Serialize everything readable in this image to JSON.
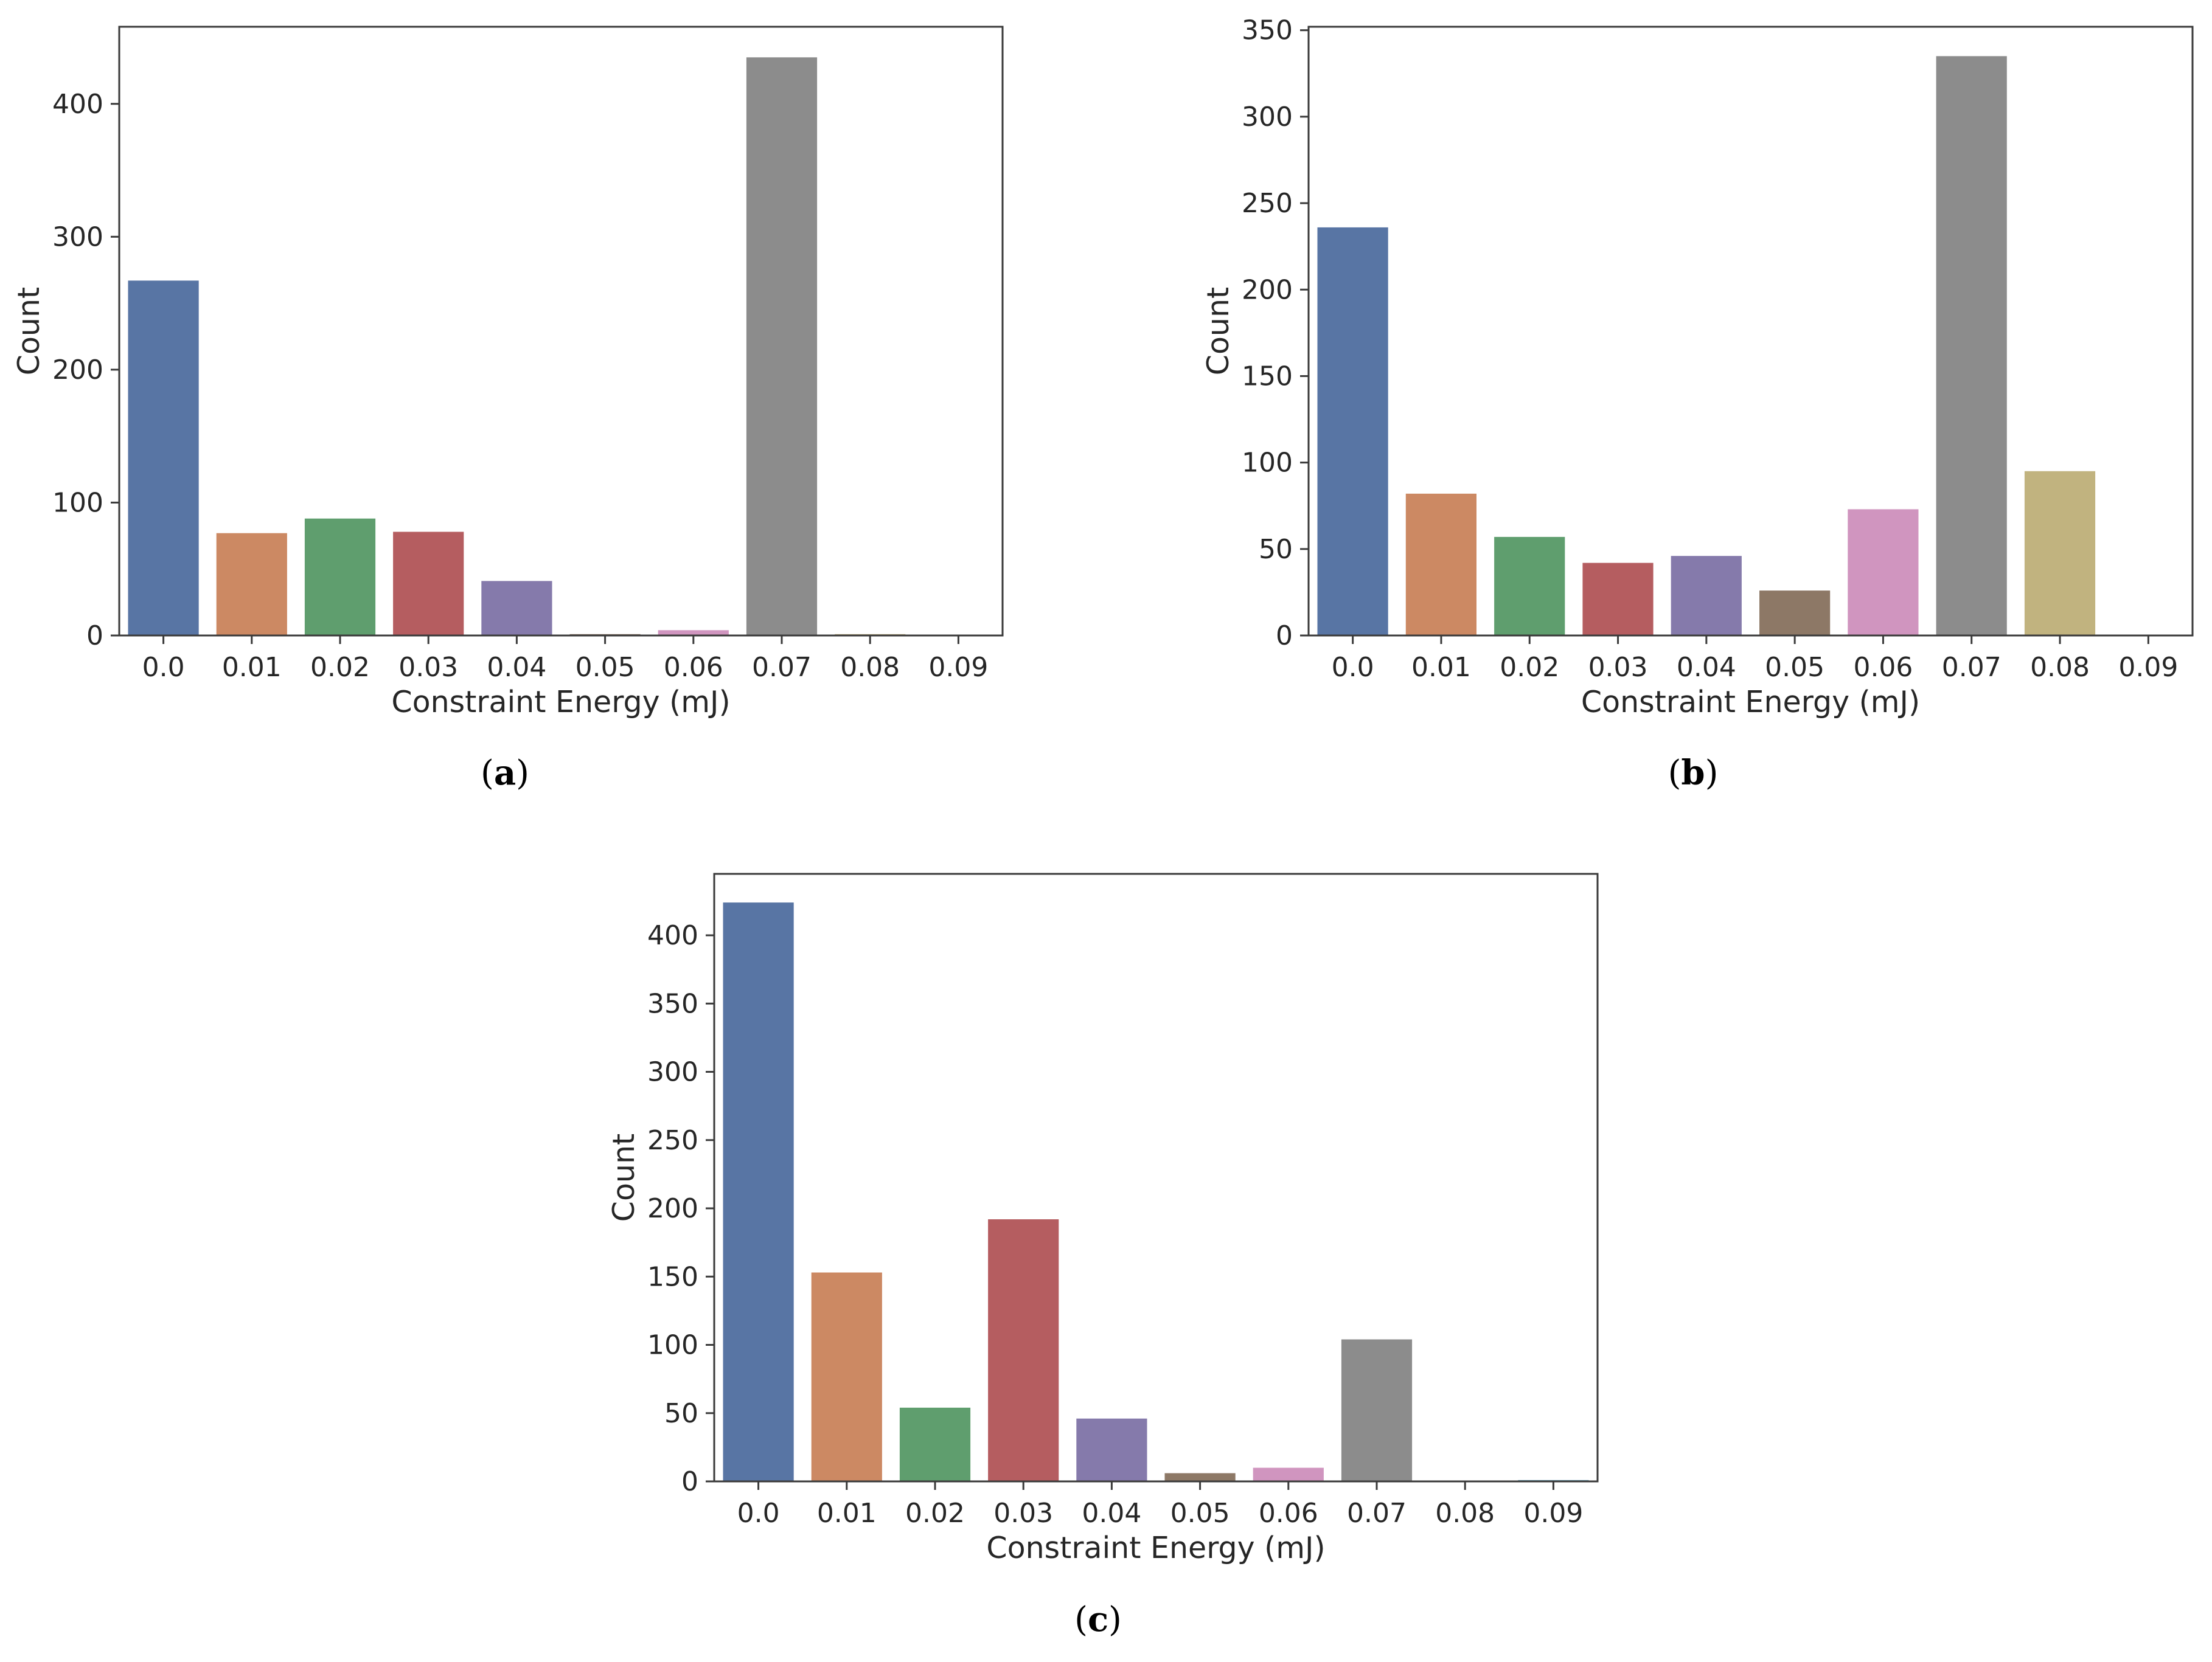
{
  "chart_data": [
    {
      "id": "a",
      "type": "bar",
      "caption_letter": "a",
      "xlabel": "Constraint Energy (mJ)",
      "ylabel": "Count",
      "categories": [
        "0.0",
        "0.01",
        "0.02",
        "0.03",
        "0.04",
        "0.05",
        "0.06",
        "0.07",
        "0.08",
        "0.09"
      ],
      "values": [
        267,
        77,
        88,
        78,
        41,
        1,
        4,
        435,
        1,
        0
      ],
      "colors": [
        "#5875a4",
        "#cc8963",
        "#5f9e6e",
        "#b55d60",
        "#857aab",
        "#8d7866",
        "#d095bf",
        "#8c8c8c",
        "#c1b37f",
        "#6aa4bb"
      ],
      "ylim": [
        0,
        458
      ],
      "yticks": [
        0,
        100,
        200,
        300,
        400
      ]
    },
    {
      "id": "b",
      "type": "bar",
      "caption_letter": "b",
      "xlabel": "Constraint Energy (mJ)",
      "ylabel": "Count",
      "categories": [
        "0.0",
        "0.01",
        "0.02",
        "0.03",
        "0.04",
        "0.05",
        "0.06",
        "0.07",
        "0.08",
        "0.09"
      ],
      "values": [
        236,
        82,
        57,
        42,
        46,
        26,
        73,
        335,
        95,
        0
      ],
      "colors": [
        "#5875a4",
        "#cc8963",
        "#5f9e6e",
        "#b55d60",
        "#857aab",
        "#8d7866",
        "#d095bf",
        "#8c8c8c",
        "#c1b37f",
        "#6aa4bb"
      ],
      "ylim": [
        0,
        352
      ],
      "yticks": [
        0,
        50,
        100,
        150,
        200,
        250,
        300,
        350
      ]
    },
    {
      "id": "c",
      "type": "bar",
      "caption_letter": "c",
      "xlabel": "Constraint Energy (mJ)",
      "ylabel": "Count",
      "categories": [
        "0.0",
        "0.01",
        "0.02",
        "0.03",
        "0.04",
        "0.05",
        "0.06",
        "0.07",
        "0.08",
        "0.09"
      ],
      "values": [
        424,
        153,
        54,
        192,
        46,
        6,
        10,
        104,
        0,
        1
      ],
      "colors": [
        "#5875a4",
        "#cc8963",
        "#5f9e6e",
        "#b55d60",
        "#857aab",
        "#8d7866",
        "#d095bf",
        "#8c8c8c",
        "#c1b37f",
        "#6aa4bb"
      ],
      "ylim": [
        0,
        445
      ],
      "yticks": [
        0,
        50,
        100,
        150,
        200,
        250,
        300,
        350,
        400
      ]
    }
  ]
}
